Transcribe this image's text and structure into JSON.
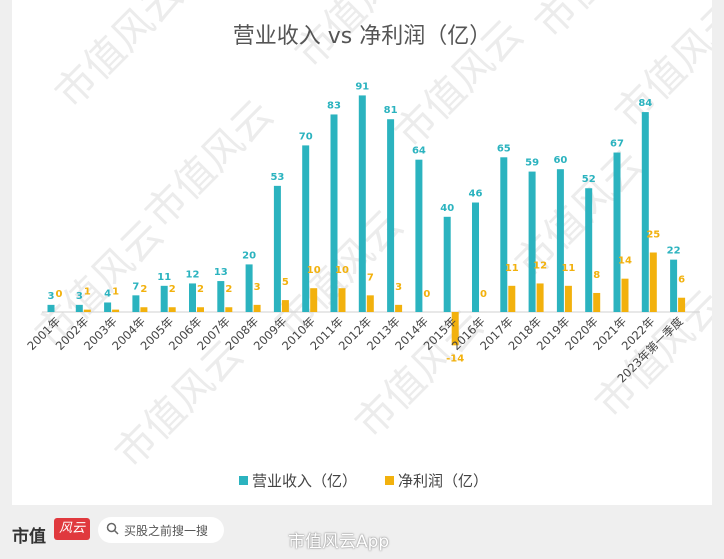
{
  "chart_data": {
    "type": "bar",
    "title": "营业收入 vs 净利润（亿）",
    "categories": [
      "2001年",
      "2002年",
      "2003年",
      "2004年",
      "2005年",
      "2006年",
      "2007年",
      "2008年",
      "2009年",
      "2010年",
      "2011年",
      "2012年",
      "2013年",
      "2014年",
      "2015年",
      "2016年",
      "2017年",
      "2018年",
      "2019年",
      "2020年",
      "2021年",
      "2022年",
      "2023年第一季度"
    ],
    "series": [
      {
        "name": "营业收入（亿）",
        "color": "#2bb3bf",
        "values": [
          3,
          3,
          4,
          7,
          11,
          12,
          13,
          20,
          53,
          70,
          83,
          91,
          81,
          64,
          40,
          46,
          65,
          59,
          60,
          52,
          67,
          84,
          22
        ]
      },
      {
        "name": "净利润（亿）",
        "color": "#f2b10d",
        "values": [
          0,
          1,
          1,
          2,
          2,
          2,
          2,
          3,
          5,
          10,
          10,
          7,
          3,
          0,
          -14,
          0,
          11,
          12,
          11,
          8,
          14,
          25,
          6
        ]
      }
    ],
    "legend_position": "bottom",
    "grid": false
  },
  "watermark": "市值风云",
  "footer": {
    "brand": "市值",
    "brand_mark": "风云",
    "search_placeholder": "买股之前搜一搜",
    "weibo_text": "市值风云App"
  }
}
